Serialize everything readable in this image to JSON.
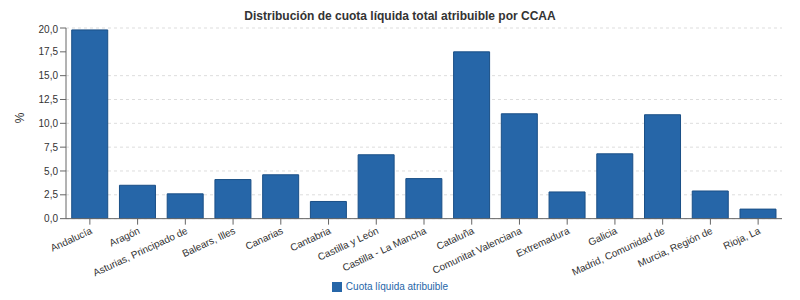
{
  "chart_data": {
    "type": "bar",
    "title": "Distribución de cuota líquida total atribuible por CCAA",
    "y_label": "%",
    "categories": [
      "Andalucía",
      "Aragón",
      "Asturias, Principado de",
      "Balears, Illes",
      "Canarias",
      "Cantabria",
      "Castilla y León",
      "Castilla - La Mancha",
      "Cataluña",
      "Comunitat Valenciana",
      "Extremadura",
      "Galicia",
      "Madrid, Comunidad de",
      "Murcia, Región de",
      "Rioja, La"
    ],
    "series": [
      {
        "name": "Cuota líquida atribuible",
        "color": "#2666a8",
        "values": [
          19.8,
          3.5,
          2.6,
          4.1,
          4.6,
          1.8,
          6.7,
          4.2,
          17.5,
          11.0,
          2.8,
          6.8,
          10.9,
          2.9,
          1.0
        ]
      }
    ],
    "ylim": [
      0,
      20
    ],
    "yticks": [
      {
        "value": 0,
        "label": "0,0"
      },
      {
        "value": 2.5,
        "label": "2,5"
      },
      {
        "value": 5,
        "label": "5,0"
      },
      {
        "value": 7.5,
        "label": "7,5"
      },
      {
        "value": 10,
        "label": "10,0"
      },
      {
        "value": 12.5,
        "label": "12,5"
      },
      {
        "value": 15,
        "label": "15,0"
      },
      {
        "value": 17.5,
        "label": "17,5"
      },
      {
        "value": 20,
        "label": "20,0"
      }
    ],
    "grid": true,
    "legend": "bottom"
  }
}
